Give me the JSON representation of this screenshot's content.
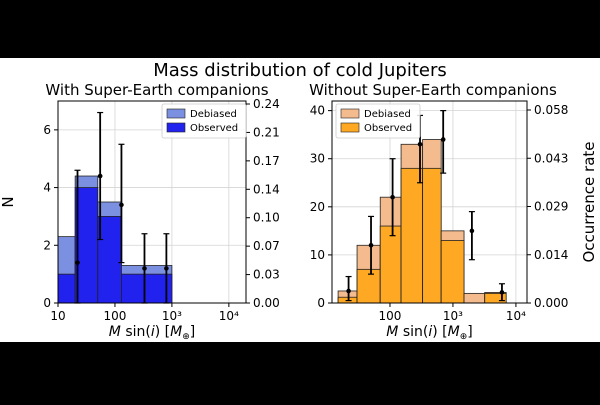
{
  "figure": {
    "title": "Mass distribution of cold Jupiters",
    "ylabel_left": "N",
    "ylabel_right": "Occurrence rate"
  },
  "colors": {
    "background": "#000000",
    "figure": "#ffffff",
    "left_debiased": "#7b90e0",
    "left_observed": "#2222ee",
    "right_debiased": "#f4bb8f",
    "right_observed": "#ffa824",
    "errorbar": "#000000"
  },
  "chart_data": [
    {
      "type": "bar",
      "title": "With Super-Earth companions",
      "xlabel": "M sin(i) [M⊕]",
      "ylabel": "N",
      "xscale": "log",
      "xlim": [
        10,
        20000
      ],
      "ylim": [
        0,
        7
      ],
      "x_ticks": [
        "10",
        "100",
        "10³",
        "10⁴"
      ],
      "y_ticks": [
        0,
        2,
        4,
        6
      ],
      "y2_label": "",
      "y2_ticks": [
        "0.00",
        "0.03",
        "0.07",
        "0.10",
        "0.14",
        "0.17",
        "0.21",
        "0.24"
      ],
      "bin_edges": [
        10,
        20,
        50,
        130,
        330,
        1000
      ],
      "legend": {
        "position": "top-right",
        "entries": [
          "Debiased",
          "Observed"
        ]
      },
      "series": [
        {
          "name": "Debiased",
          "values": [
            2.3,
            4.4,
            3.5,
            1.3,
            1.3
          ]
        },
        {
          "name": "Observed",
          "values": [
            1.0,
            4.0,
            3.0,
            1.0,
            1.0
          ]
        }
      ],
      "errorbars": [
        {
          "x": 22,
          "y": 1.4,
          "low": 0.0,
          "high": 4.6
        },
        {
          "x": 55,
          "y": 4.4,
          "low": 2.2,
          "high": 6.6
        },
        {
          "x": 130,
          "y": 3.4,
          "low": 1.4,
          "high": 5.5
        },
        {
          "x": 330,
          "y": 1.2,
          "low": 0.0,
          "high": 2.4
        },
        {
          "x": 800,
          "y": 1.2,
          "low": 0.0,
          "high": 2.4
        }
      ]
    },
    {
      "type": "bar",
      "title": "Without Super-Earth companions",
      "xlabel": "M sin(i) [M⊕]",
      "ylabel": "",
      "xscale": "log",
      "xlim": [
        12,
        15000
      ],
      "ylim": [
        0,
        42
      ],
      "x_ticks": [
        "100",
        "10³",
        "10⁴"
      ],
      "y_ticks": [
        0,
        10,
        20,
        30,
        40
      ],
      "y2_label": "Occurrence rate",
      "y2_ticks": [
        "0.000",
        "0.014",
        "0.029",
        "0.043",
        "0.058"
      ],
      "bin_edges": [
        15,
        30,
        70,
        150,
        330,
        650,
        1500,
        3200,
        7000,
        10000
      ],
      "legend": {
        "position": "top-left",
        "entries": [
          "Debiased",
          "Observed"
        ]
      },
      "series": [
        {
          "name": "Debiased",
          "values": [
            2.5,
            12,
            22,
            33,
            34,
            15,
            2,
            2.2,
            0
          ]
        },
        {
          "name": "Observed",
          "values": [
            1.2,
            7,
            16,
            28,
            28,
            13,
            0,
            2,
            0
          ]
        }
      ],
      "errorbars": [
        {
          "x": 22,
          "y": 2.5,
          "low": 0.5,
          "high": 5.5
        },
        {
          "x": 50,
          "y": 12,
          "low": 6,
          "high": 18
        },
        {
          "x": 110,
          "y": 22,
          "low": 14,
          "high": 30
        },
        {
          "x": 300,
          "y": 33,
          "low": 25,
          "high": 39
        },
        {
          "x": 700,
          "y": 34,
          "low": 27,
          "high": 40
        },
        {
          "x": 2000,
          "y": 15,
          "low": 9,
          "high": 19
        },
        {
          "x": 6000,
          "y": 2.2,
          "low": 0.5,
          "high": 4
        }
      ]
    }
  ]
}
